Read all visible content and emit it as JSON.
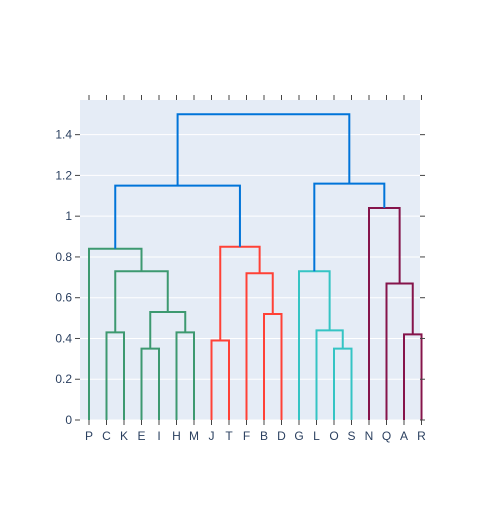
{
  "chart_data": {
    "type": "dendrogram",
    "leaves": [
      "P",
      "C",
      "K",
      "E",
      "I",
      "H",
      "M",
      "J",
      "T",
      "F",
      "B",
      "D",
      "G",
      "L",
      "O",
      "S",
      "N",
      "Q",
      "A",
      "R"
    ],
    "y_ticks": [
      {
        "value": 0,
        "label": "0"
      },
      {
        "value": 0.2,
        "label": "0.2"
      },
      {
        "value": 0.4,
        "label": "0.4"
      },
      {
        "value": 0.6,
        "label": "0.6"
      },
      {
        "value": 0.8,
        "label": "0.8"
      },
      {
        "value": 1.0,
        "label": "1"
      },
      {
        "value": 1.2,
        "label": "1.2"
      },
      {
        "value": 1.4,
        "label": "1.4"
      }
    ],
    "ylim": [
      0,
      1.57
    ],
    "grid": true,
    "colors": {
      "green": "#3d9970",
      "red": "#ff4136",
      "cyan": "#35c4c4",
      "maroon": "#85144b",
      "blue": "#0074d9",
      "background": "#e5ecf6"
    },
    "links": [
      {
        "color": "green",
        "x": [
          3,
          3,
          4,
          4
        ],
        "y": [
          0,
          0.35,
          0.35,
          0
        ]
      },
      {
        "color": "green",
        "x": [
          5,
          5,
          6,
          6
        ],
        "y": [
          0,
          0.43,
          0.43,
          0
        ]
      },
      {
        "color": "green",
        "x": [
          3.5,
          3.5,
          5.5,
          5.5
        ],
        "y": [
          0.35,
          0.53,
          0.53,
          0.43
        ]
      },
      {
        "color": "green",
        "x": [
          1,
          1,
          2,
          2
        ],
        "y": [
          0,
          0.43,
          0.43,
          0
        ]
      },
      {
        "color": "green",
        "x": [
          1.5,
          1.5,
          4.5,
          4.5
        ],
        "y": [
          0.43,
          0.73,
          0.73,
          0.53
        ]
      },
      {
        "color": "green",
        "x": [
          0,
          0,
          3,
          3
        ],
        "y": [
          0,
          0.84,
          0.84,
          0.73
        ]
      },
      {
        "color": "red",
        "x": [
          7,
          7,
          8,
          8
        ],
        "y": [
          0,
          0.39,
          0.39,
          0
        ]
      },
      {
        "color": "red",
        "x": [
          10,
          10,
          11,
          11
        ],
        "y": [
          0,
          0.52,
          0.52,
          0
        ]
      },
      {
        "color": "red",
        "x": [
          9,
          9,
          10.5,
          10.5
        ],
        "y": [
          0,
          0.72,
          0.72,
          0.52
        ]
      },
      {
        "color": "red",
        "x": [
          7.5,
          7.5,
          9.75,
          9.75
        ],
        "y": [
          0.39,
          0.85,
          0.85,
          0.72
        ]
      },
      {
        "color": "blue",
        "x": [
          1.5,
          1.5,
          8.625,
          8.625
        ],
        "y": [
          0.84,
          1.15,
          1.15,
          0.85
        ]
      },
      {
        "color": "cyan",
        "x": [
          14,
          14,
          15,
          15
        ],
        "y": [
          0,
          0.35,
          0.35,
          0
        ]
      },
      {
        "color": "cyan",
        "x": [
          13,
          13,
          14.5,
          14.5
        ],
        "y": [
          0,
          0.44,
          0.44,
          0.35
        ]
      },
      {
        "color": "cyan",
        "x": [
          12,
          12,
          13.75,
          13.75
        ],
        "y": [
          0,
          0.73,
          0.73,
          0.44
        ]
      },
      {
        "color": "maroon",
        "x": [
          18,
          18,
          19,
          19
        ],
        "y": [
          0,
          0.42,
          0.42,
          0
        ]
      },
      {
        "color": "maroon",
        "x": [
          17,
          17,
          18.5,
          18.5
        ],
        "y": [
          0,
          0.67,
          0.67,
          0.42
        ]
      },
      {
        "color": "maroon",
        "x": [
          16,
          16,
          17.75,
          17.75
        ],
        "y": [
          0,
          1.04,
          1.04,
          0.67
        ]
      },
      {
        "color": "blue",
        "x": [
          12.875,
          12.875,
          16.875,
          16.875
        ],
        "y": [
          0.73,
          1.16,
          1.16,
          1.04
        ]
      },
      {
        "color": "blue",
        "x": [
          5.0625,
          5.0625,
          14.875,
          14.875
        ],
        "y": [
          1.15,
          1.5,
          1.5,
          1.16
        ]
      }
    ]
  }
}
